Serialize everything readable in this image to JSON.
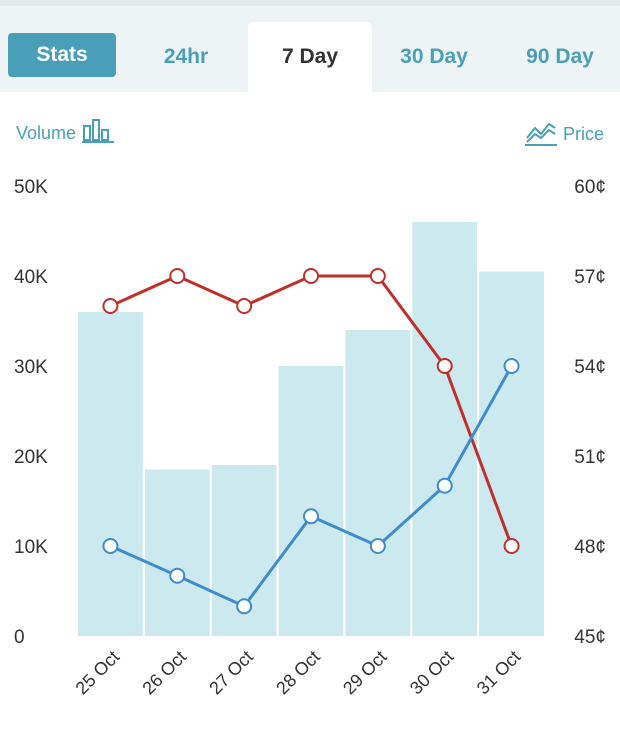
{
  "tabs": {
    "stats": "Stats",
    "h24": "24hr",
    "d7": "7 Day",
    "d30": "30 Day",
    "d90": "90 Day"
  },
  "volume_label": "Volume",
  "price_label": "Price",
  "chart_data": {
    "type": "bar",
    "categories": [
      "25 Oct",
      "26 Oct",
      "27 Oct",
      "28 Oct",
      "29 Oct",
      "30 Oct",
      "31 Oct"
    ],
    "series": [
      {
        "kind": "bar",
        "axis": "left",
        "values": [
          36000,
          18500,
          19000,
          30000,
          34000,
          46000,
          40500
        ],
        "color": "#cde9f0"
      },
      {
        "kind": "line",
        "axis": "right",
        "values": [
          56,
          57,
          56,
          57,
          57,
          54,
          48
        ],
        "color": "#c0302a"
      },
      {
        "kind": "line",
        "axis": "left",
        "values": [
          10000,
          6700,
          3300,
          13300,
          10000,
          16700,
          30000
        ],
        "color": "#3e8ccc"
      }
    ],
    "y_left": {
      "ticks": [
        "0",
        "10K",
        "20K",
        "30K",
        "40K",
        "50K"
      ],
      "lim": [
        0,
        50000
      ]
    },
    "y_right": {
      "ticks": [
        "45¢",
        "48¢",
        "51¢",
        "54¢",
        "57¢",
        "60¢"
      ],
      "lim": [
        45,
        60
      ]
    },
    "grid": false,
    "xlabel": "",
    "ylabel": "Volume",
    "y2label": "Price"
  }
}
